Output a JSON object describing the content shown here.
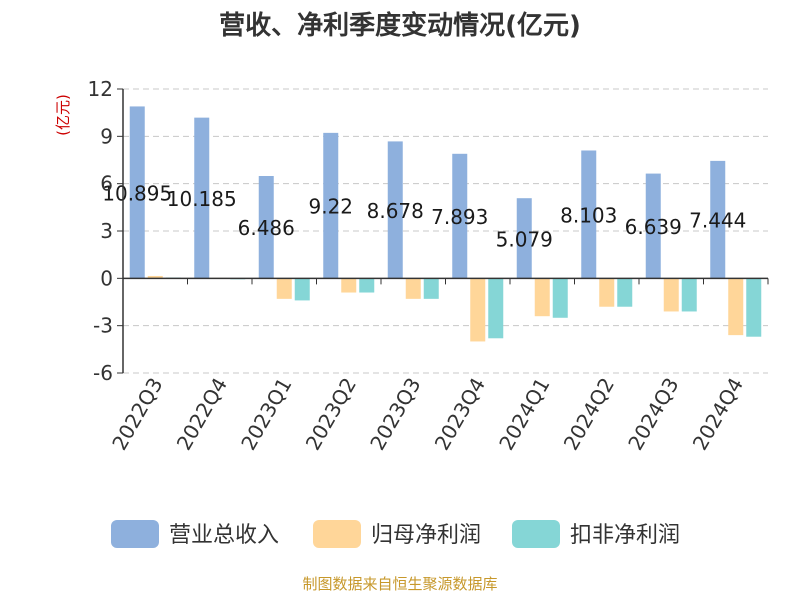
{
  "title": "营收、净利季度变动情况(亿元)",
  "source": "制图数据来自恒生聚源数据库",
  "colors": {
    "revenue": "#8eb0dd",
    "parent_net_profit": "#ffd699",
    "non_recurring_net_profit": "#85d6d6",
    "title": "#333333",
    "unit_label": "#cc0000",
    "source": "#c7982b",
    "grid": "#c8c8c8",
    "axis": "#333333"
  },
  "chart_data": {
    "type": "bar",
    "title": "营收、净利季度变动情况(亿元)",
    "xlabel": "",
    "ylabel": "(亿元)",
    "ylim": [
      -6,
      12
    ],
    "yticks": [
      12,
      9,
      6,
      3,
      0,
      -3,
      -6
    ],
    "ytick_labels": [
      "12",
      "9",
      "6",
      "3",
      "0",
      "-3",
      "-6"
    ],
    "grid": "horizontal dashed",
    "legend_position": "bottom",
    "categories": [
      "2022Q3",
      "2022Q4",
      "2023Q1",
      "2023Q2",
      "2023Q3",
      "2023Q4",
      "2024Q1",
      "2024Q2",
      "2024Q3",
      "2024Q4"
    ],
    "series": [
      {
        "name": "营业总收入",
        "values": [
          10.895,
          10.185,
          6.486,
          9.22,
          8.678,
          7.893,
          5.079,
          8.103,
          6.639,
          7.444
        ],
        "labels": [
          "10.895",
          "10.185",
          "6.486",
          "9.22",
          "8.678",
          "7.893",
          "5.079",
          "8.103",
          "6.639",
          "7.444"
        ]
      },
      {
        "name": "归母净利润",
        "values": [
          0.15,
          0.03,
          -1.3,
          -0.9,
          -1.3,
          -4.0,
          -2.4,
          -1.8,
          -2.1,
          -3.6
        ]
      },
      {
        "name": "扣非净利润",
        "values": [
          0.05,
          -0.05,
          -1.4,
          -0.9,
          -1.3,
          -3.8,
          -2.5,
          -1.8,
          -2.1,
          -3.7
        ]
      }
    ]
  }
}
